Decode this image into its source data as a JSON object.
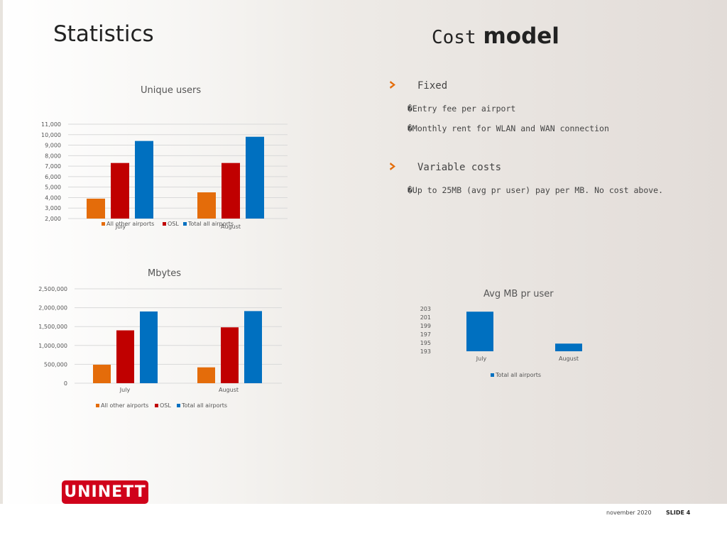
{
  "slide": {
    "title_left": "Statistics",
    "title_right_a": "Cost",
    "title_right_b": "model",
    "date": "november 2020",
    "slide_label": "SLIDE 4",
    "logo_text": "UNINETT"
  },
  "cost_model": {
    "sections": [
      {
        "heading": "Fixed",
        "items": [
          "�Entry fee per airport",
          "�Monthly rent for WLAN and WAN connection"
        ]
      },
      {
        "heading": "Variable costs",
        "items": [
          "�Up to 25MB (avg pr user) pay per MB. No cost above."
        ]
      }
    ]
  },
  "colors": {
    "orange": "#e46c0a",
    "red": "#c00000",
    "blue": "#0070c0",
    "logo": "#d0021b"
  },
  "chart_data": [
    {
      "type": "bar",
      "title": "Unique users",
      "categories": [
        "July",
        "August"
      ],
      "series": [
        {
          "name": "All other airports",
          "values": [
            3900,
            4500
          ]
        },
        {
          "name": "OSL",
          "values": [
            7300,
            7300
          ]
        },
        {
          "name": "Total all airports",
          "values": [
            9400,
            9800
          ]
        }
      ],
      "yticks": [
        "11,000",
        "10,000",
        "9,000",
        "8,000",
        "7,000",
        "6,000",
        "5,000",
        "4,000",
        "3,000",
        "2,000"
      ],
      "ylim": [
        2000,
        11000
      ],
      "grid": true,
      "legend": "bottom"
    },
    {
      "type": "bar",
      "title": "Mbytes",
      "categories": [
        "July",
        "August"
      ],
      "series": [
        {
          "name": "All other airports",
          "values": [
            490000,
            420000
          ]
        },
        {
          "name": "OSL",
          "values": [
            1400000,
            1480000
          ]
        },
        {
          "name": "Total all airports",
          "values": [
            1900000,
            1910000
          ]
        }
      ],
      "yticks": [
        "2,500,000",
        "2,000,000",
        "1,500,000",
        "1,000,000",
        "500,000",
        "0"
      ],
      "ylim": [
        0,
        2500000
      ],
      "grid": true,
      "legend": "bottom"
    },
    {
      "type": "bar",
      "title": "Avg MB pr user",
      "categories": [
        "July",
        "August"
      ],
      "series": [
        {
          "name": "Total all airports",
          "values": [
            202.3,
            194.8
          ]
        }
      ],
      "yticks": [
        "203",
        "201",
        "199",
        "197",
        "195",
        "193"
      ],
      "ylim": [
        193,
        203
      ],
      "grid": false,
      "legend": "bottom"
    }
  ]
}
